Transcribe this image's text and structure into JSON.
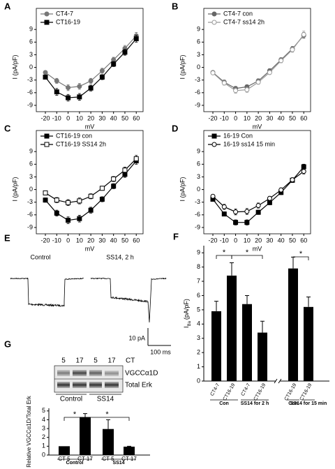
{
  "chart_data": [
    {
      "type": "line",
      "panel": "A",
      "xlabel": "mV",
      "ylabel": "I (pA/pF)",
      "x": [
        -20,
        -10,
        0,
        10,
        20,
        30,
        40,
        50,
        60
      ],
      "xlim": [
        -28,
        66
      ],
      "xticks": [
        -20,
        -10,
        0,
        10,
        20,
        30,
        40,
        50,
        60
      ],
      "ylim": [
        -10.5,
        14
      ],
      "yticks": [
        -9,
        -6,
        -3,
        0,
        3,
        6,
        9
      ],
      "series": [
        {
          "name": "CT4-7",
          "color": "#777777",
          "marker": "circle",
          "fill": "filled",
          "values": [
            -1.2,
            -3.2,
            -4.8,
            -4.5,
            -3.2,
            -0.8,
            1.8,
            4.5,
            7.5
          ],
          "errors": [
            0.4,
            0.6,
            0.7,
            0.7,
            0.6,
            0.6,
            0.6,
            0.7,
            0.8
          ]
        },
        {
          "name": "CT16-19",
          "color": "#000000",
          "marker": "square",
          "fill": "filled",
          "values": [
            -2.3,
            -5.8,
            -7.2,
            -7.0,
            -4.9,
            -2.3,
            0.8,
            3.6,
            6.8
          ],
          "errors": [
            0.4,
            0.8,
            0.8,
            0.8,
            0.7,
            0.6,
            0.6,
            0.7,
            0.8
          ]
        }
      ]
    },
    {
      "type": "line",
      "panel": "B",
      "xlabel": "mV",
      "ylabel": "I (pA/pF)",
      "x": [
        -20,
        -10,
        0,
        10,
        20,
        30,
        40,
        50,
        60
      ],
      "xlim": [
        -28,
        66
      ],
      "xticks": [
        -20,
        -10,
        0,
        10,
        20,
        30,
        40,
        50,
        60
      ],
      "ylim": [
        -10.5,
        14
      ],
      "yticks": [
        -9,
        -6,
        -3,
        0,
        3,
        6,
        9
      ],
      "series": [
        {
          "name": "CT4-7 con",
          "color": "#666666",
          "marker": "circle",
          "fill": "filled",
          "values": [
            -1.2,
            -3.5,
            -5.0,
            -4.6,
            -3.2,
            -0.8,
            1.8,
            4.4,
            7.6
          ],
          "errors": [
            0.3,
            0.5,
            0.5,
            0.5,
            0.5,
            0.5,
            0.5,
            0.6,
            0.7
          ]
        },
        {
          "name": "CT4-7 ss14 2h",
          "color": "#999999",
          "marker": "circle",
          "fill": "open",
          "values": [
            -1.3,
            -3.7,
            -5.5,
            -5.3,
            -3.5,
            -1.2,
            1.6,
            4.2,
            7.8
          ],
          "errors": [
            0.3,
            0.5,
            0.6,
            0.6,
            0.5,
            0.5,
            0.5,
            0.6,
            0.8
          ]
        }
      ]
    },
    {
      "type": "line",
      "panel": "C",
      "xlabel": "mV",
      "ylabel": "I (pA/pF)",
      "x": [
        -20,
        -10,
        0,
        10,
        20,
        30,
        40,
        50,
        60
      ],
      "xlim": [
        -28,
        66
      ],
      "xticks": [
        -20,
        -10,
        0,
        10,
        20,
        30,
        40,
        50,
        60
      ],
      "ylim": [
        -10.5,
        14
      ],
      "yticks": [
        -9,
        -6,
        -3,
        0,
        3,
        6,
        9
      ],
      "series": [
        {
          "name": "CT16-19 con",
          "color": "#000000",
          "marker": "square",
          "fill": "filled",
          "values": [
            -2.5,
            -5.6,
            -7.3,
            -6.9,
            -4.9,
            -2.3,
            0.8,
            3.6,
            6.8
          ],
          "errors": [
            0.5,
            0.7,
            0.8,
            0.8,
            0.7,
            0.6,
            0.6,
            0.7,
            0.8
          ]
        },
        {
          "name": "CT16-19 SS14 2h",
          "color": "#000000",
          "marker": "square",
          "fill": "open",
          "values": [
            -0.8,
            -2.5,
            -3.1,
            -2.7,
            -1.6,
            0.3,
            2.5,
            4.6,
            7.3
          ],
          "errors": [
            0.4,
            0.6,
            0.7,
            0.7,
            0.6,
            0.5,
            0.6,
            0.7,
            0.8
          ]
        }
      ]
    },
    {
      "type": "line",
      "panel": "D",
      "xlabel": "mV",
      "ylabel": "I (pA/pF)",
      "x": [
        -20,
        -10,
        0,
        10,
        20,
        30,
        40,
        50,
        60
      ],
      "xlim": [
        -28,
        66
      ],
      "xticks": [
        -20,
        -10,
        0,
        10,
        20,
        30,
        40,
        50,
        60
      ],
      "ylim": [
        -10.5,
        14
      ],
      "yticks": [
        -9,
        -6,
        -3,
        0,
        3,
        6,
        9
      ],
      "series": [
        {
          "name": "16-19 Con",
          "color": "#000000",
          "marker": "square",
          "fill": "filled",
          "values": [
            -2.3,
            -5.8,
            -7.8,
            -7.8,
            -5.4,
            -3.1,
            -0.7,
            2.2,
            5.4
          ],
          "errors": [
            0.4,
            0.5,
            0.6,
            0.6,
            0.5,
            0.5,
            0.5,
            0.5,
            0.6
          ]
        },
        {
          "name": "16-19 ss14 15 min",
          "color": "#000000",
          "marker": "circle",
          "fill": "open",
          "values": [
            -1.6,
            -4.1,
            -5.3,
            -5.2,
            -3.8,
            -2.1,
            -0.1,
            2.3,
            4.3
          ],
          "errors": [
            0.4,
            0.6,
            0.7,
            0.7,
            0.6,
            0.5,
            0.5,
            0.5,
            0.6
          ]
        }
      ]
    },
    {
      "type": "bar",
      "panel": "F",
      "ylabel_main": "I",
      "ylabel_sub": "Ba",
      "ylabel_unit": "(pA/pF)",
      "categories": [
        "CT4-7",
        "CT16-19",
        "CT4-7",
        "CT16-19",
        "CT16-19",
        "CT16-19"
      ],
      "groups": [
        "Con",
        "SS14 for 2 h",
        "Con",
        "SS14 for 15 min"
      ],
      "annotations": [
        "*",
        "*",
        "*"
      ],
      "values": [
        4.9,
        7.4,
        5.4,
        3.4,
        7.9,
        5.2
      ],
      "errors": [
        0.7,
        0.9,
        0.6,
        0.8,
        0.8,
        0.7
      ],
      "color": "#000000",
      "ylim": [
        0,
        9.5
      ],
      "yticks": [
        0,
        1,
        2,
        3,
        4,
        5,
        6,
        7,
        8,
        9
      ]
    },
    {
      "type": "bar",
      "panel": "G",
      "ylabel": "Relative VGCCα1D/Total Erk",
      "categories": [
        "CT 5",
        "CT 17",
        "CT 5",
        "CT 17"
      ],
      "groups": [
        "Control",
        "SS14"
      ],
      "annotations": [
        "*",
        "*"
      ],
      "values": [
        1.0,
        4.3,
        2.95,
        0.95
      ],
      "errors": [
        null,
        0.4,
        1.05,
        0.05
      ],
      "color": "#000000",
      "ylim": [
        0,
        5.3
      ],
      "yticks": [
        0,
        1,
        2,
        3,
        4,
        5
      ],
      "blot": {
        "lanes": [
          "5",
          "17",
          "5",
          "17"
        ],
        "lane_title": "CT",
        "bands": [
          "VGCCα1D",
          "Total Erk"
        ],
        "groups": [
          "Control",
          "SS14"
        ]
      }
    }
  ],
  "panel_e": {
    "panel": "E",
    "traces": [
      "Control",
      "SS14, 2 h"
    ],
    "scale_current": "10 pA",
    "scale_time": "100 ms"
  }
}
